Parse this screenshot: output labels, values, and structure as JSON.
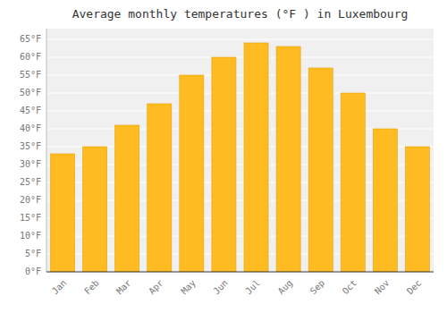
{
  "chart_data": {
    "type": "bar",
    "title": "Average monthly temperatures (°F ) in Luxembourg",
    "categories": [
      "Jan",
      "Feb",
      "Mar",
      "Apr",
      "May",
      "Jun",
      "Jul",
      "Aug",
      "Sep",
      "Oct",
      "Nov",
      "Dec"
    ],
    "values": [
      33,
      35,
      41,
      47,
      55,
      60,
      64,
      63,
      57,
      50,
      40,
      35
    ],
    "color": "#FFBB22",
    "ylim": [
      0,
      68
    ],
    "yticks": [
      {
        "value": 0,
        "label": "0°F"
      },
      {
        "value": 5,
        "label": "5°F"
      },
      {
        "value": 10,
        "label": "10°F"
      },
      {
        "value": 15,
        "label": "15°F"
      },
      {
        "value": 20,
        "label": "20°F"
      },
      {
        "value": 25,
        "label": "25°F"
      },
      {
        "value": 30,
        "label": "30°F"
      },
      {
        "value": 35,
        "label": "35°F"
      },
      {
        "value": 40,
        "label": "40°F"
      },
      {
        "value": 45,
        "label": "45°F"
      },
      {
        "value": 50,
        "label": "50°F"
      },
      {
        "value": 55,
        "label": "55°F"
      },
      {
        "value": 60,
        "label": "60°F"
      },
      {
        "value": 65,
        "label": "65°F"
      }
    ],
    "grid": true
  }
}
